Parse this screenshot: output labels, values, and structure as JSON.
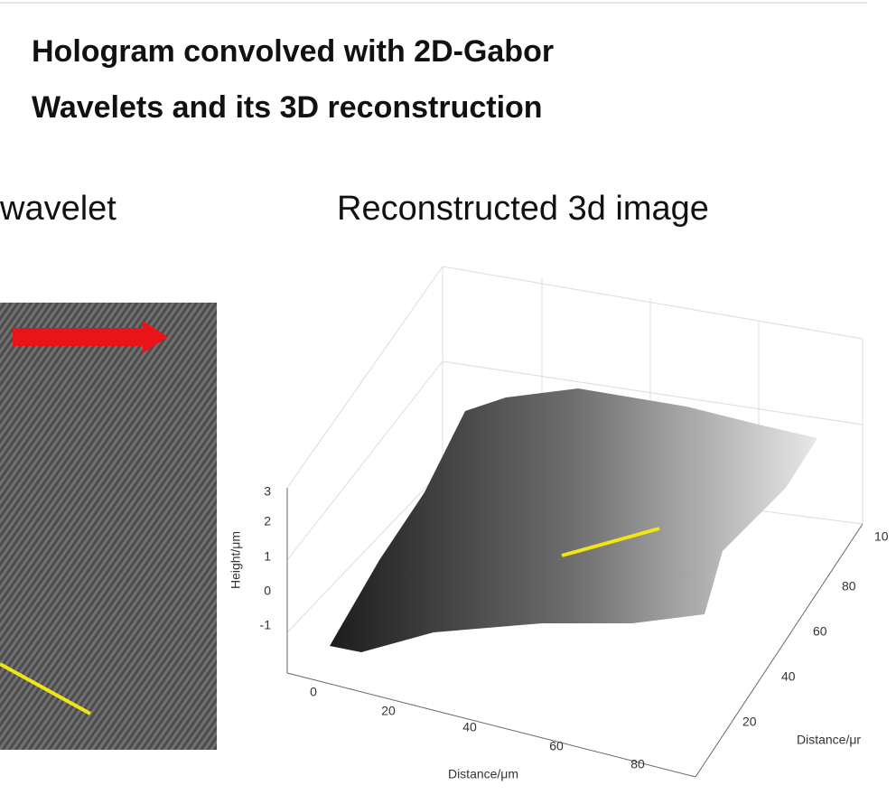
{
  "title_lines": [
    "Hologram convolved with 2D-Gabor",
    "Wavelets and its 3D reconstruction"
  ],
  "left_panel": {
    "caption": "wavelet"
  },
  "right_panel": {
    "caption": "Reconstructed 3d image",
    "plot": {
      "z_axis_label": "Height/μm",
      "z_ticks": [
        "3",
        "2",
        "1",
        "0",
        "-1"
      ],
      "x_axis_label": "Distance/μm",
      "x_ticks": [
        "0",
        "20",
        "40",
        "60",
        "80"
      ],
      "y_axis_label": "Distance/μr",
      "y_ticks": [
        "20",
        "40",
        "60",
        "80",
        "10"
      ]
    }
  }
}
